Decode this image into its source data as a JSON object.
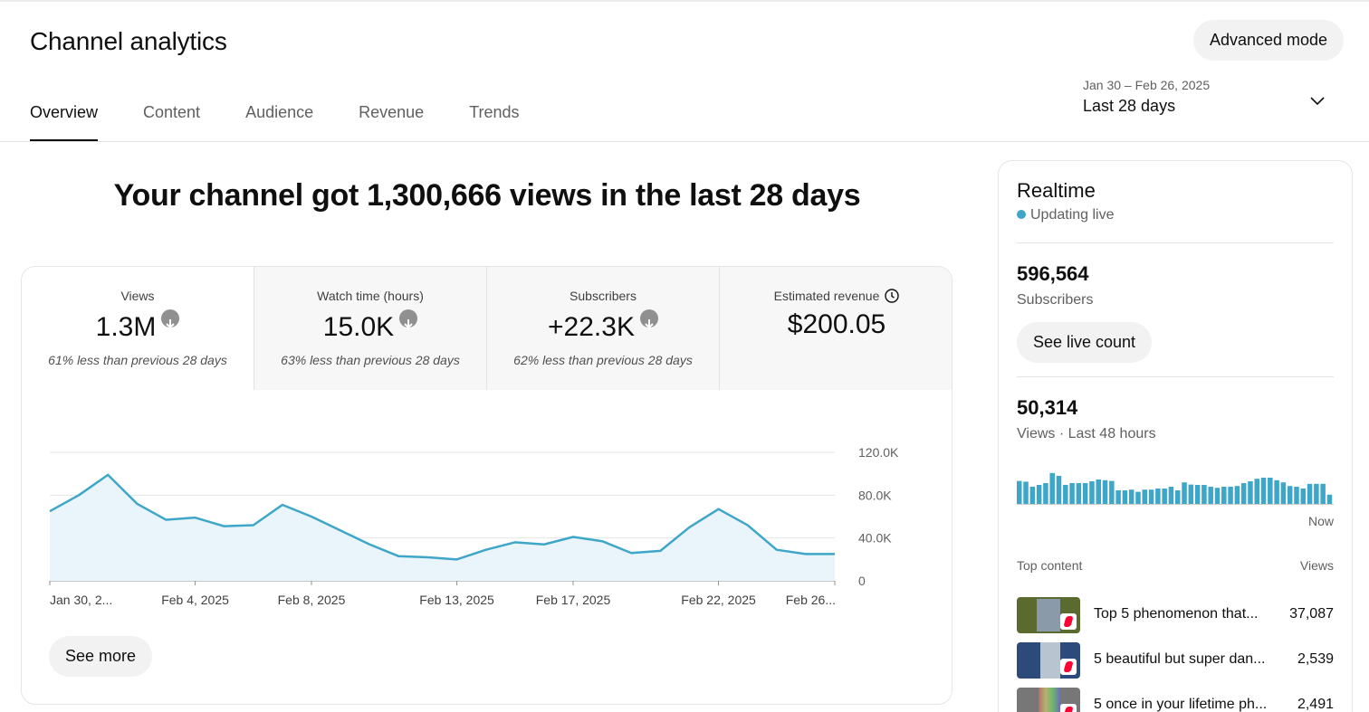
{
  "header": {
    "title": "Channel analytics",
    "advanced_mode_label": "Advanced mode"
  },
  "tabs": [
    {
      "label": "Overview",
      "active": true
    },
    {
      "label": "Content",
      "active": false
    },
    {
      "label": "Audience",
      "active": false
    },
    {
      "label": "Revenue",
      "active": false
    },
    {
      "label": "Trends",
      "active": false
    }
  ],
  "date_picker": {
    "range": "Jan 30 – Feb 26, 2025",
    "label": "Last 28 days"
  },
  "headline": "Your channel got 1,300,666 views in the last 28 days",
  "metrics": [
    {
      "label": "Views",
      "value": "1.3M",
      "note": "61% less than previous 28 days"
    },
    {
      "label": "Watch time (hours)",
      "value": "15.0K",
      "note": "63% less than previous 28 days"
    },
    {
      "label": "Subscribers",
      "value": "+22.3K",
      "note": "62% less than previous 28 days"
    },
    {
      "label": "Estimated revenue",
      "value": "$200.05",
      "note": ""
    }
  ],
  "chart_data": {
    "type": "area",
    "x": [
      "Jan 30",
      "Jan 31",
      "Feb 1",
      "Feb 2",
      "Feb 3",
      "Feb 4",
      "Feb 5",
      "Feb 6",
      "Feb 7",
      "Feb 8",
      "Feb 9",
      "Feb 10",
      "Feb 11",
      "Feb 12",
      "Feb 13",
      "Feb 14",
      "Feb 15",
      "Feb 16",
      "Feb 17",
      "Feb 18",
      "Feb 19",
      "Feb 20",
      "Feb 21",
      "Feb 22",
      "Feb 23",
      "Feb 24",
      "Feb 25",
      "Feb 26"
    ],
    "x_tick_labels": [
      "Jan 30, 2...",
      "Feb 4, 2025",
      "Feb 8, 2025",
      "Feb 13, 2025",
      "Feb 17, 2025",
      "Feb 22, 2025",
      "Feb 26..."
    ],
    "y_tick_labels": [
      "120.0K",
      "80.0K",
      "40.0K",
      "0"
    ],
    "series": [
      {
        "values": [
          65000,
          80000,
          99000,
          72000,
          57000,
          59000,
          51000,
          52000,
          71000,
          60000,
          47000,
          34000,
          23000,
          22000,
          20000,
          29000,
          36000,
          34000,
          41000,
          37000,
          26000,
          28000,
          50000,
          67000,
          52000,
          29000,
          25000,
          25000
        ]
      }
    ],
    "ylim": [
      0,
      120000
    ],
    "grid": true,
    "color": "#3ea6c9"
  },
  "see_more_label": "See more",
  "realtime": {
    "title": "Realtime",
    "status": "Updating live",
    "subscribers_value": "596,564",
    "subscribers_label": "Subscribers",
    "live_count_label": "See live count",
    "views_value": "50,314",
    "views_label": "Views · Last 48 hours",
    "now_label": "Now",
    "bars": [
      0.66,
      0.64,
      0.5,
      0.55,
      0.6,
      0.88,
      0.8,
      0.55,
      0.6,
      0.6,
      0.6,
      0.65,
      0.7,
      0.68,
      0.66,
      0.4,
      0.4,
      0.42,
      0.36,
      0.42,
      0.42,
      0.45,
      0.45,
      0.5,
      0.4,
      0.62,
      0.56,
      0.55,
      0.55,
      0.5,
      0.47,
      0.5,
      0.5,
      0.52,
      0.6,
      0.65,
      0.72,
      0.75,
      0.75,
      0.68,
      0.62,
      0.52,
      0.5,
      0.45,
      0.58,
      0.58,
      0.58,
      0.28
    ],
    "top_content_label": "Top content",
    "views_column_label": "Views",
    "top_content": [
      {
        "title": "Top 5 phenomenon that...",
        "views": "37,087",
        "thumb_color": "#5b6a2e"
      },
      {
        "title": "5 beautiful but super dan...",
        "views": "2,539",
        "thumb_color": "#2c4a7a"
      },
      {
        "title": "5 once in your lifetime ph...",
        "views": "2,491",
        "thumb_color": "#777777"
      }
    ]
  },
  "colors": {
    "accent": "#3ea6c9",
    "area_fill": "#e9f5fa"
  }
}
